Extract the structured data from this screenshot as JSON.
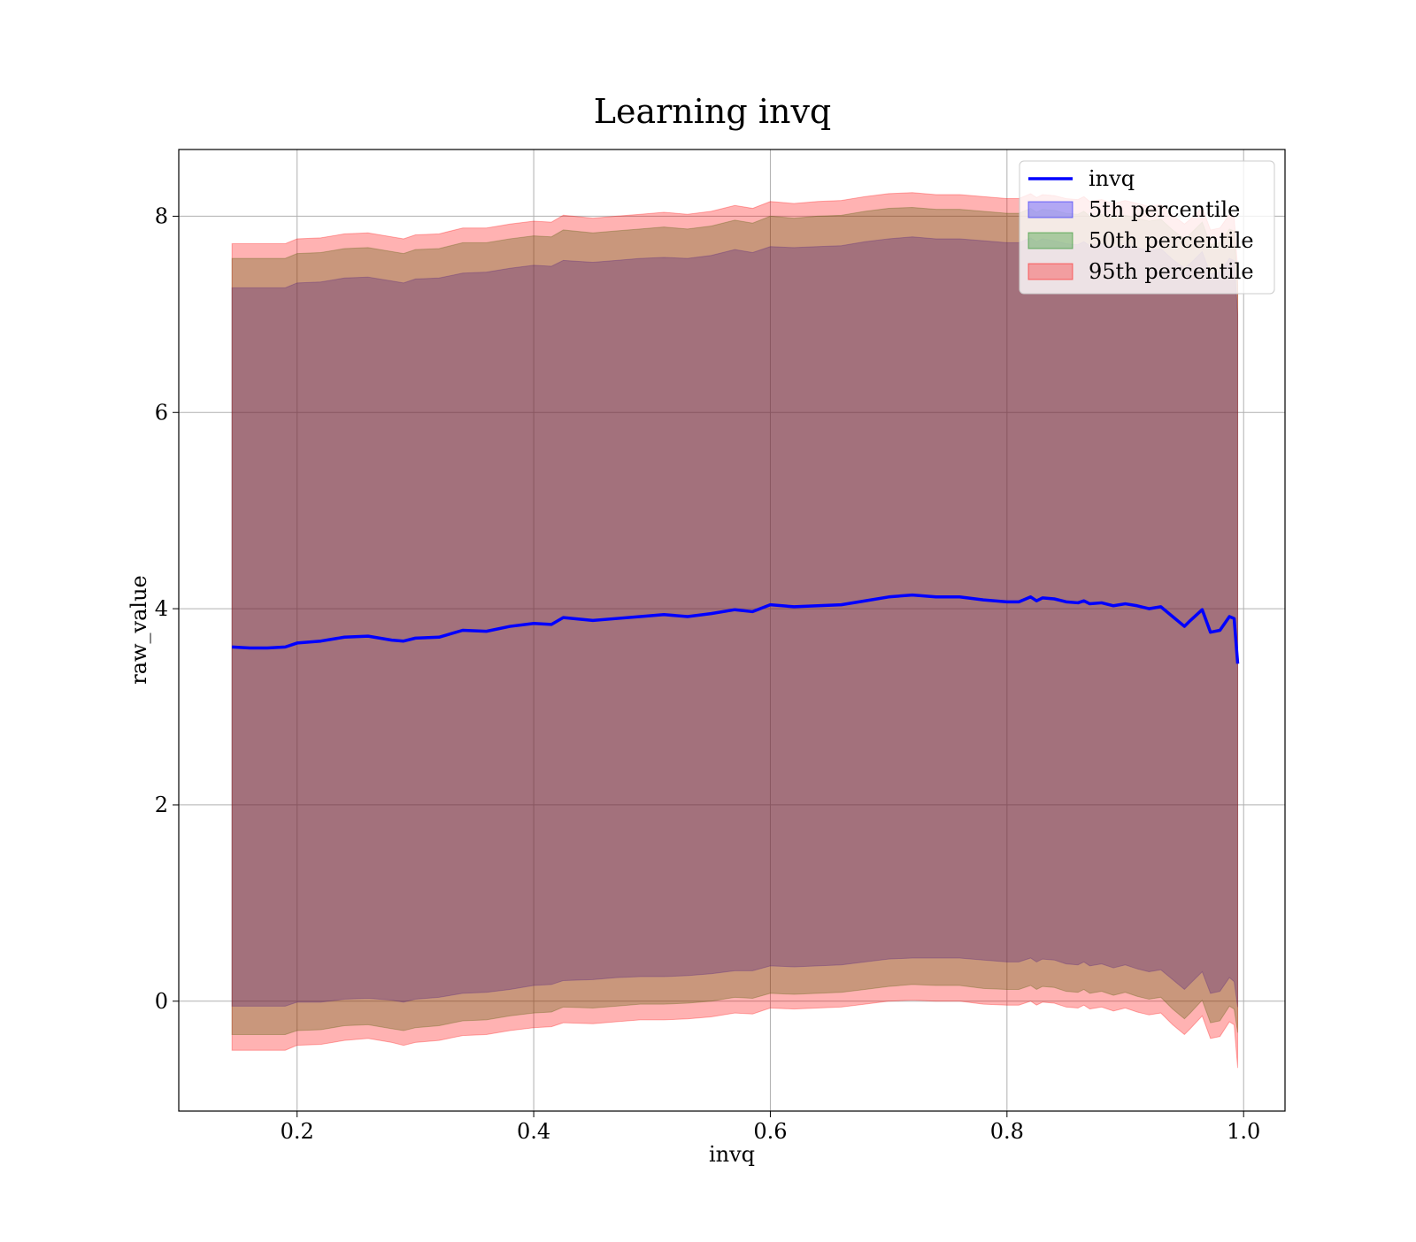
{
  "chart_data": {
    "type": "area",
    "title": "Learning invq",
    "xlabel": "invq",
    "ylabel": "raw_value",
    "xlim": [
      0.1,
      1.035
    ],
    "ylim": [
      -1.12,
      8.68
    ],
    "xticks": [
      0.2,
      0.4,
      0.6,
      0.8,
      1.0
    ],
    "xtick_labels": [
      "0.2",
      "0.4",
      "0.6",
      "0.8",
      "1.0"
    ],
    "yticks": [
      0,
      2,
      4,
      6,
      8
    ],
    "ytick_labels": [
      "0",
      "2",
      "4",
      "6",
      "8"
    ],
    "grid": true,
    "legend_position": "top-right",
    "x": [
      0.145,
      0.16,
      0.175,
      0.19,
      0.2,
      0.22,
      0.24,
      0.26,
      0.28,
      0.29,
      0.3,
      0.32,
      0.34,
      0.36,
      0.38,
      0.4,
      0.415,
      0.425,
      0.45,
      0.47,
      0.49,
      0.51,
      0.53,
      0.55,
      0.57,
      0.585,
      0.6,
      0.62,
      0.64,
      0.66,
      0.68,
      0.7,
      0.72,
      0.74,
      0.76,
      0.78,
      0.8,
      0.81,
      0.82,
      0.825,
      0.83,
      0.84,
      0.85,
      0.86,
      0.865,
      0.87,
      0.88,
      0.89,
      0.9,
      0.91,
      0.92,
      0.93,
      0.94,
      0.95,
      0.955,
      0.965,
      0.972,
      0.98,
      0.988,
      0.992,
      0.995
    ],
    "series": [
      {
        "name": "invq",
        "color": "#0000ff",
        "values": [
          3.61,
          3.6,
          3.6,
          3.61,
          3.65,
          3.67,
          3.71,
          3.72,
          3.68,
          3.67,
          3.7,
          3.71,
          3.78,
          3.77,
          3.82,
          3.85,
          3.84,
          3.91,
          3.88,
          3.9,
          3.92,
          3.94,
          3.92,
          3.95,
          3.99,
          3.97,
          4.04,
          4.02,
          4.03,
          4.04,
          4.08,
          4.12,
          4.14,
          4.12,
          4.12,
          4.09,
          4.07,
          4.07,
          4.12,
          4.08,
          4.11,
          4.1,
          4.07,
          4.06,
          4.08,
          4.05,
          4.06,
          4.03,
          4.05,
          4.03,
          4.0,
          4.02,
          3.92,
          3.82,
          3.88,
          3.99,
          3.76,
          3.78,
          3.92,
          3.9,
          3.44
        ]
      }
    ],
    "bands": [
      {
        "name": "5th percentile",
        "color": "#0000ff",
        "alpha": 0.3,
        "lower": [
          -0.05,
          -0.05,
          -0.05,
          -0.05,
          -0.01,
          -0.01,
          0.02,
          0.03,
          0.01,
          -0.01,
          0.02,
          0.04,
          0.08,
          0.09,
          0.12,
          0.16,
          0.17,
          0.21,
          0.22,
          0.24,
          0.25,
          0.25,
          0.26,
          0.28,
          0.31,
          0.31,
          0.36,
          0.35,
          0.36,
          0.37,
          0.4,
          0.43,
          0.44,
          0.44,
          0.44,
          0.42,
          0.4,
          0.4,
          0.44,
          0.4,
          0.43,
          0.42,
          0.38,
          0.37,
          0.4,
          0.36,
          0.38,
          0.34,
          0.37,
          0.33,
          0.3,
          0.32,
          0.22,
          0.12,
          0.18,
          0.3,
          0.08,
          0.1,
          0.24,
          0.2,
          -0.06
        ],
        "upper": [
          7.27,
          7.27,
          7.27,
          7.27,
          7.32,
          7.33,
          7.37,
          7.38,
          7.34,
          7.32,
          7.36,
          7.37,
          7.42,
          7.43,
          7.47,
          7.5,
          7.49,
          7.55,
          7.53,
          7.55,
          7.57,
          7.58,
          7.57,
          7.6,
          7.66,
          7.63,
          7.69,
          7.68,
          7.69,
          7.7,
          7.74,
          7.77,
          7.79,
          7.77,
          7.77,
          7.75,
          7.73,
          7.73,
          7.78,
          7.74,
          7.77,
          7.75,
          7.72,
          7.71,
          7.74,
          7.7,
          7.72,
          7.68,
          7.71,
          7.68,
          7.65,
          7.67,
          7.56,
          7.47,
          7.52,
          7.64,
          7.41,
          7.43,
          7.57,
          7.55,
          7.0
        ]
      },
      {
        "name": "50th percentile",
        "color": "#008000",
        "alpha": 0.3,
        "lower": [
          -0.34,
          -0.34,
          -0.34,
          -0.34,
          -0.3,
          -0.29,
          -0.25,
          -0.24,
          -0.28,
          -0.3,
          -0.27,
          -0.25,
          -0.2,
          -0.19,
          -0.15,
          -0.12,
          -0.11,
          -0.06,
          -0.07,
          -0.05,
          -0.03,
          -0.03,
          -0.02,
          0.0,
          0.04,
          0.03,
          0.08,
          0.07,
          0.08,
          0.09,
          0.12,
          0.15,
          0.17,
          0.16,
          0.16,
          0.13,
          0.12,
          0.12,
          0.16,
          0.12,
          0.15,
          0.14,
          0.1,
          0.09,
          0.12,
          0.08,
          0.1,
          0.06,
          0.09,
          0.05,
          0.02,
          0.04,
          -0.08,
          -0.18,
          -0.12,
          0.01,
          -0.22,
          -0.2,
          -0.05,
          -0.08,
          -0.32
        ],
        "upper": [
          7.57,
          7.57,
          7.57,
          7.57,
          7.62,
          7.63,
          7.67,
          7.68,
          7.64,
          7.62,
          7.66,
          7.67,
          7.73,
          7.73,
          7.77,
          7.8,
          7.79,
          7.86,
          7.83,
          7.85,
          7.87,
          7.89,
          7.87,
          7.9,
          7.96,
          7.93,
          8.0,
          7.98,
          8.0,
          8.01,
          8.05,
          8.08,
          8.09,
          8.07,
          8.07,
          8.05,
          8.03,
          8.03,
          8.08,
          8.04,
          8.07,
          8.06,
          8.03,
          8.02,
          8.05,
          8.0,
          8.02,
          7.98,
          8.01,
          7.98,
          7.95,
          7.97,
          7.86,
          7.77,
          7.82,
          7.94,
          7.71,
          7.73,
          7.87,
          7.85,
          7.3
        ]
      },
      {
        "name": "95th percentile",
        "color": "#ff0000",
        "alpha": 0.3,
        "lower": [
          -0.5,
          -0.5,
          -0.5,
          -0.5,
          -0.45,
          -0.44,
          -0.4,
          -0.38,
          -0.42,
          -0.45,
          -0.42,
          -0.4,
          -0.35,
          -0.34,
          -0.3,
          -0.27,
          -0.26,
          -0.22,
          -0.23,
          -0.21,
          -0.19,
          -0.19,
          -0.18,
          -0.16,
          -0.12,
          -0.13,
          -0.07,
          -0.08,
          -0.07,
          -0.06,
          -0.03,
          0.0,
          0.01,
          0.0,
          0.0,
          -0.03,
          -0.04,
          -0.04,
          0.0,
          -0.04,
          -0.01,
          -0.02,
          -0.06,
          -0.07,
          -0.04,
          -0.08,
          -0.06,
          -0.1,
          -0.07,
          -0.11,
          -0.14,
          -0.12,
          -0.24,
          -0.34,
          -0.28,
          -0.15,
          -0.38,
          -0.36,
          -0.21,
          -0.24,
          -0.68
        ],
        "upper": [
          7.72,
          7.72,
          7.72,
          7.72,
          7.77,
          7.78,
          7.82,
          7.83,
          7.79,
          7.77,
          7.81,
          7.82,
          7.88,
          7.88,
          7.92,
          7.95,
          7.94,
          8.01,
          7.98,
          8.0,
          8.02,
          8.04,
          8.02,
          8.05,
          8.11,
          8.08,
          8.15,
          8.13,
          8.15,
          8.16,
          8.2,
          8.23,
          8.24,
          8.22,
          8.22,
          8.2,
          8.18,
          8.18,
          8.23,
          8.19,
          8.22,
          8.21,
          8.18,
          8.17,
          8.2,
          8.15,
          8.17,
          8.13,
          8.16,
          8.13,
          8.1,
          8.12,
          8.01,
          7.92,
          7.97,
          8.09,
          7.86,
          7.88,
          8.02,
          8.0,
          7.45
        ]
      }
    ]
  }
}
